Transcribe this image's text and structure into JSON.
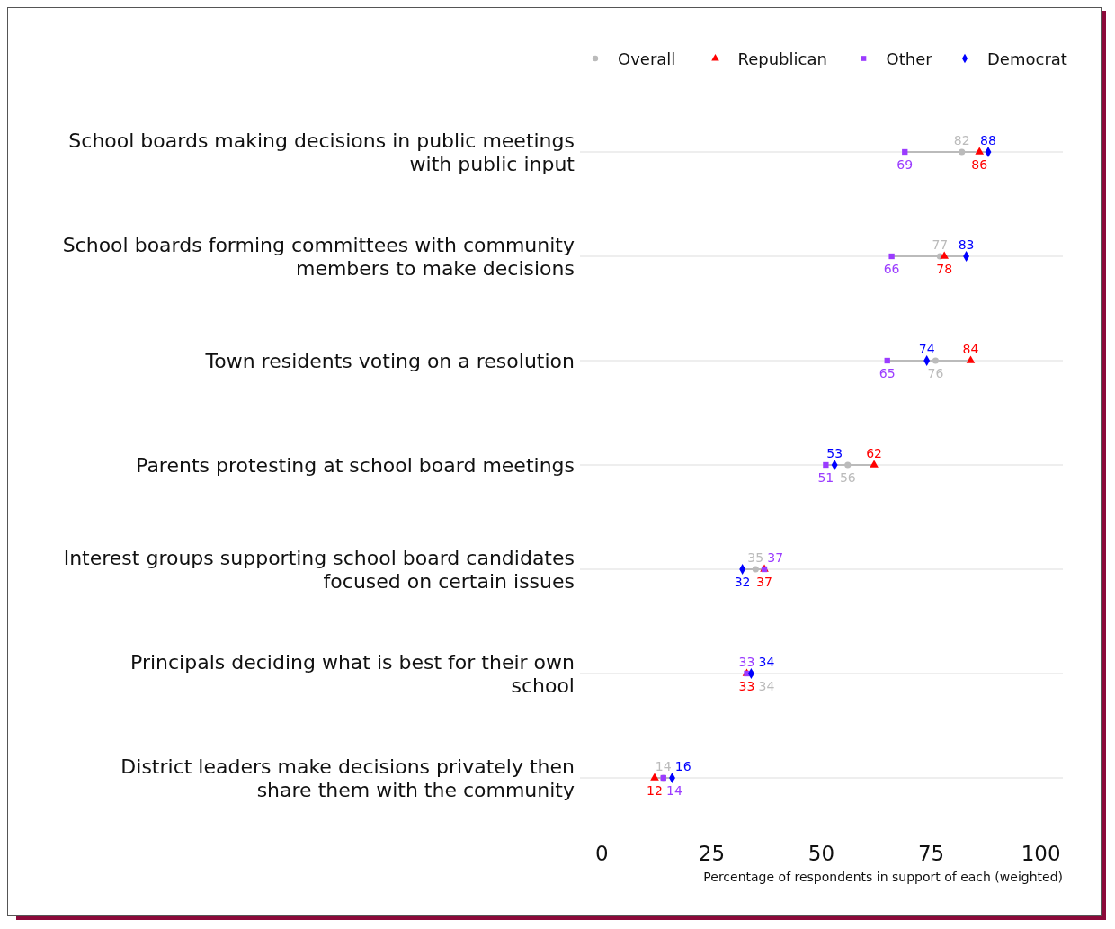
{
  "chart_data": {
    "type": "scatter",
    "orientation": "horizontal",
    "xlabel": "Percentage of respondents in support of each (weighted)",
    "categories": [
      "School boards making decisions in public meetings\nwith public input",
      "School boards forming committees with community\nmembers to make decisions",
      "Town residents voting on a resolution",
      "Parents protesting at school board meetings",
      "Interest groups supporting school board candidates\nfocused on certain issues",
      "Principals deciding what is best for their own\nschool",
      "District leaders make decisions privately then\nshare them with the community"
    ],
    "series": [
      {
        "name": "Overall",
        "color": "#bbbbbb",
        "marker": "circle",
        "values": [
          82,
          77,
          76,
          56,
          35,
          34,
          14
        ]
      },
      {
        "name": "Republican",
        "color": "#ff0000",
        "marker": "triangle",
        "values": [
          86,
          78,
          84,
          62,
          37,
          33,
          12
        ]
      },
      {
        "name": "Other",
        "color": "#9b3cff",
        "marker": "square",
        "values": [
          69,
          66,
          65,
          51,
          37,
          33,
          14
        ]
      },
      {
        "name": "Democrat",
        "color": "#0000ff",
        "marker": "diamond",
        "values": [
          88,
          83,
          74,
          53,
          32,
          34,
          16
        ]
      }
    ],
    "xlim": [
      -5,
      105
    ],
    "xticks": [
      0,
      25,
      50,
      75,
      100
    ],
    "grid": "y",
    "legend": "top right",
    "data_labels": true
  }
}
